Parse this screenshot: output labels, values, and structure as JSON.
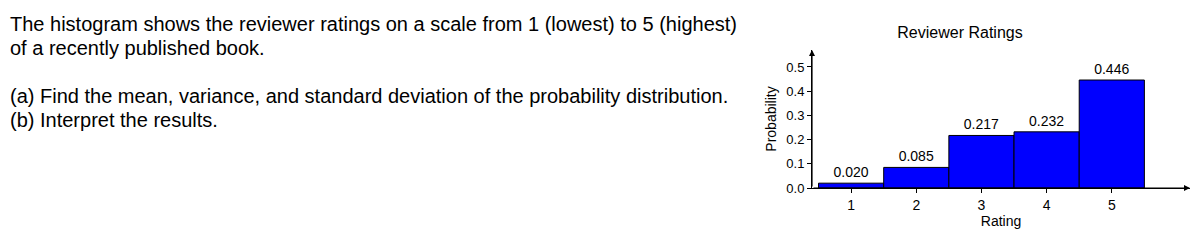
{
  "document": {
    "paragraphs": [
      "The histogram shows the reviewer ratings on a scale from 1 (lowest) to 5 (highest) of a recently published book.",
      "(a) Find the mean, variance, and standard deviation of the probability distribution.\n(b) Interpret the results."
    ]
  },
  "chart_data": {
    "type": "histogram",
    "title": "Reviewer Ratings",
    "x_label": "Rating",
    "y_label": "Probability",
    "bins": [
      0.5,
      1.5,
      2.5,
      3.5,
      4.5,
      5.5
    ],
    "values": [
      0.02,
      0.085,
      0.217,
      0.232,
      0.446
    ],
    "value_labels": [
      "0.020",
      "0.085",
      "0.217",
      "0.232",
      "0.446"
    ],
    "data_labels": true,
    "color": "#0000ff",
    "xlim": [
      0.4,
      6.2
    ],
    "xticks": [
      1,
      2,
      3,
      4,
      5
    ],
    "ylim": [
      0,
      0.57
    ],
    "yticks": [
      {
        "value": 0,
        "label": "0.0"
      },
      0.1,
      0.2,
      0.3,
      0.4,
      0.5
    ],
    "grid": false
  }
}
